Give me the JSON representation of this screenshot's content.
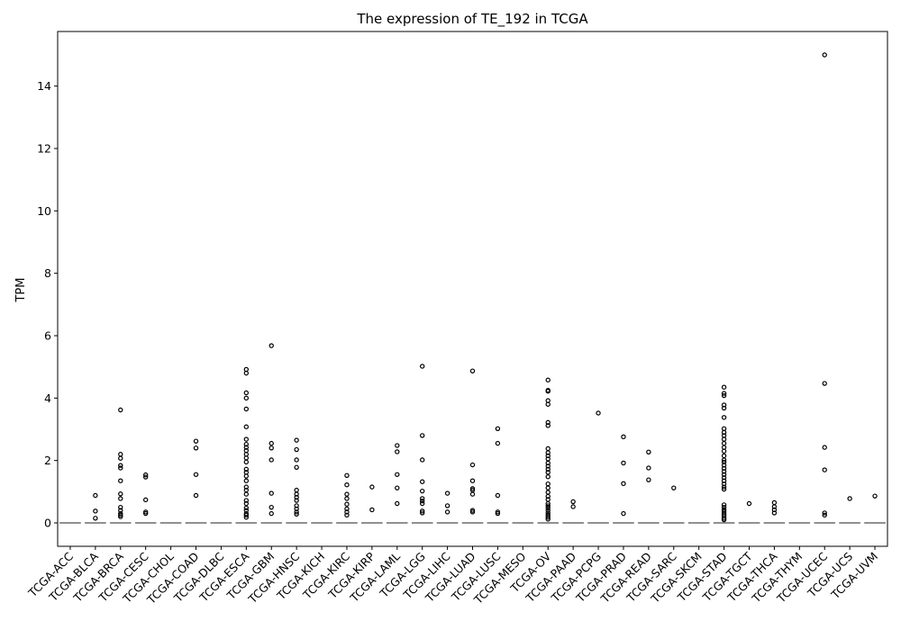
{
  "chart_data": {
    "type": "box",
    "title": "The expression of TE_192 in TCGA",
    "xlabel": "",
    "ylabel": "TPM",
    "ylim": [
      -0.75,
      15.75
    ],
    "yticks": [
      0,
      2,
      4,
      6,
      8,
      10,
      12,
      14
    ],
    "grid": false,
    "categories": [
      "TCGA-ACC",
      "TCGA-BLCA",
      "TCGA-BRCA",
      "TCGA-CESC",
      "TCGA-CHOL",
      "TCGA-COAD",
      "TCGA-DLBC",
      "TCGA-ESCA",
      "TCGA-GBM",
      "TCGA-HNSC",
      "TCGA-KICH",
      "TCGA-KIRC",
      "TCGA-KIRP",
      "TCGA-LAML",
      "TCGA-LGG",
      "TCGA-LIHC",
      "TCGA-LUAD",
      "TCGA-LUSC",
      "TCGA-MESO",
      "TCGA-OV",
      "TCGA-PAAD",
      "TCGA-PCPG",
      "TCGA-PRAD",
      "TCGA-READ",
      "TCGA-SARC",
      "TCGA-SKCM",
      "TCGA-STAD",
      "TCGA-TGCT",
      "TCGA-THCA",
      "TCGA-THYM",
      "TCGA-UCEC",
      "TCGA-UCS",
      "TCGA-UVM"
    ],
    "median": [
      0,
      0,
      0,
      0,
      0,
      0,
      0,
      0,
      0,
      0,
      0,
      0,
      0,
      0,
      0,
      0,
      0,
      0,
      0,
      0,
      0,
      0,
      0,
      0,
      0,
      0,
      0,
      0,
      0,
      0,
      0,
      0,
      0
    ],
    "outliers": [
      [],
      [
        0.88,
        0.38,
        0.15
      ],
      [
        3.62,
        2.2,
        2.07,
        1.84,
        1.76,
        1.35,
        0.93,
        0.78,
        0.5,
        0.4,
        0.3,
        0.25,
        0.2
      ],
      [
        1.54,
        1.47,
        0.74,
        0.35,
        0.3
      ],
      [],
      [
        2.62,
        2.4,
        1.55,
        0.88
      ],
      [],
      [
        4.92,
        4.8,
        4.17,
        4.0,
        3.65,
        3.08,
        2.68,
        2.52,
        2.42,
        2.32,
        2.2,
        2.08,
        1.95,
        1.72,
        1.62,
        1.5,
        1.35,
        1.15,
        1.05,
        0.92,
        0.72,
        0.62,
        0.48,
        0.4,
        0.3,
        0.25,
        0.18
      ],
      [
        5.68,
        2.55,
        2.4,
        2.02,
        0.95,
        0.5,
        0.3
      ],
      [
        2.65,
        2.35,
        2.02,
        1.78,
        1.05,
        0.92,
        0.82,
        0.72,
        0.55,
        0.45,
        0.35,
        0.28
      ],
      [],
      [
        1.52,
        1.22,
        0.92,
        0.78,
        0.6,
        0.45,
        0.35,
        0.25
      ],
      [
        1.15,
        0.42
      ],
      [
        2.48,
        2.28,
        1.55,
        1.12,
        0.62
      ],
      [
        5.02,
        2.8,
        2.02,
        1.32,
        1.02,
        0.78,
        0.7,
        0.62,
        0.38,
        0.32
      ],
      [
        0.95,
        0.55,
        0.35
      ],
      [
        4.87,
        1.86,
        1.35,
        1.1,
        1.05,
        0.92,
        0.4,
        0.35
      ],
      [
        3.02,
        2.55,
        0.88,
        0.35,
        0.3
      ],
      [],
      [
        4.58,
        4.25,
        4.22,
        3.92,
        3.8,
        3.22,
        3.12,
        2.38,
        2.25,
        2.15,
        2.05,
        1.92,
        1.82,
        1.72,
        1.62,
        1.48,
        1.25,
        1.12,
        0.98,
        0.85,
        0.75,
        0.62,
        0.55,
        0.48,
        0.4,
        0.32,
        0.25,
        0.18,
        0.12
      ],
      [
        0.68,
        0.52
      ],
      [
        3.52
      ],
      [
        2.76,
        1.92,
        1.26,
        0.3
      ],
      [
        2.27,
        1.76,
        1.38
      ],
      [
        1.12
      ],
      [],
      [
        4.35,
        4.15,
        4.08,
        3.78,
        3.68,
        3.38,
        3.02,
        2.9,
        2.8,
        2.68,
        2.55,
        2.42,
        2.3,
        2.15,
        2.02,
        1.95,
        1.85,
        1.75,
        1.65,
        1.55,
        1.45,
        1.35,
        1.25,
        1.15,
        1.08,
        0.58,
        0.5,
        0.42,
        0.35,
        0.28,
        0.22,
        0.15,
        0.1
      ],
      [
        0.62
      ],
      [
        0.65,
        0.52,
        0.42,
        0.32
      ],
      [],
      [
        15.0,
        4.47,
        2.42,
        1.7,
        0.32,
        0.25
      ],
      [
        0.78
      ],
      [
        0.86
      ]
    ]
  }
}
